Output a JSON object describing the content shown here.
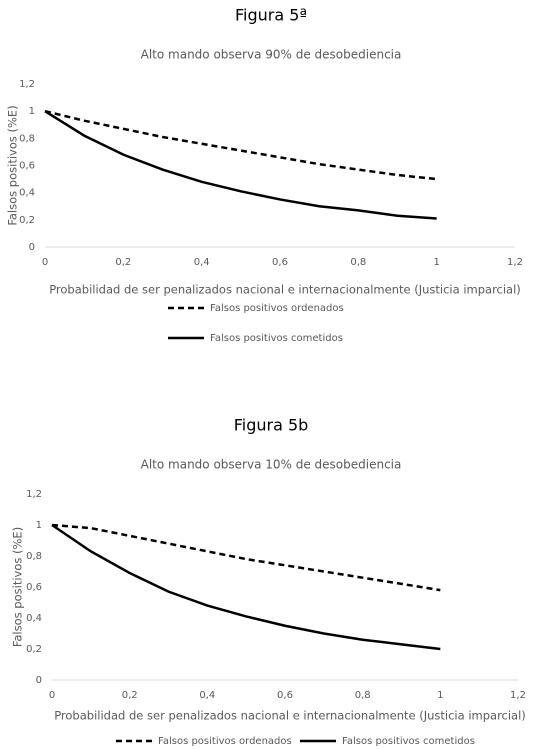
{
  "chart_data": [
    {
      "type": "line",
      "figure_label": "Figura 5ª",
      "title": "Alto mando observa 90% de desobediencia",
      "x_label": "Probabilidad de ser penalizados nacional e internacionalmente (Justicia imparcial)",
      "y_label": "Falsos positivos (%E)",
      "x": [
        0,
        0.1,
        0.2,
        0.3,
        0.4,
        0.5,
        0.6,
        0.7,
        0.8,
        0.9,
        1
      ],
      "series": [
        {
          "name": "Falsos positivos ordenados",
          "color": "#000000",
          "line_style": "dashed",
          "values": [
            1,
            0.93,
            0.87,
            0.81,
            0.76,
            0.71,
            0.66,
            0.61,
            0.57,
            0.53,
            0.5
          ]
        },
        {
          "name": "Falsos positivos cometidos",
          "color": "#000000",
          "line_style": "solid",
          "values": [
            1,
            0.82,
            0.68,
            0.57,
            0.48,
            0.41,
            0.35,
            0.3,
            0.27,
            0.23,
            0.21
          ]
        }
      ],
      "xlim": [
        0,
        1.2
      ],
      "xticks": [
        0,
        {
          "value": 0.2,
          "label": "0,2"
        },
        {
          "value": 0.4,
          "label": "0,4"
        },
        {
          "value": 0.6,
          "label": "0,6"
        },
        {
          "value": 0.8,
          "label": "0,8"
        },
        1,
        {
          "value": 1.2,
          "label": "1,2"
        }
      ],
      "ylim": [
        0,
        1.2
      ],
      "yticks": [
        0,
        {
          "value": 0.2,
          "label": "0,2"
        },
        {
          "value": 0.4,
          "label": "0,4"
        },
        {
          "value": 0.6,
          "label": "0,6"
        },
        {
          "value": 0.8,
          "label": "0,8"
        },
        1,
        {
          "value": 1.2,
          "label": "1,2"
        }
      ],
      "grid": false,
      "legend": "bottom-vertical"
    },
    {
      "type": "line",
      "figure_label": "Figura 5b",
      "title": "Alto mando observa 10% de desobediencia",
      "x_label": "Probabilidad de ser penalizados nacional e internacionalmente (Justicia imparcial)",
      "y_label": "Falsos positivos (%E)",
      "x": [
        0,
        0.1,
        0.2,
        0.3,
        0.4,
        0.5,
        0.6,
        0.7,
        0.8,
        0.9,
        1
      ],
      "series": [
        {
          "name": "Falsos positivos ordenados",
          "color": "#000000",
          "line_style": "dashed",
          "values": [
            1,
            0.98,
            0.93,
            0.88,
            0.83,
            0.78,
            0.74,
            0.7,
            0.66,
            0.62,
            0.58
          ]
        },
        {
          "name": "Falsos positivos cometidos",
          "color": "#000000",
          "line_style": "solid",
          "values": [
            1,
            0.83,
            0.69,
            0.57,
            0.48,
            0.41,
            0.35,
            0.3,
            0.26,
            0.23,
            0.2
          ]
        }
      ],
      "xlim": [
        0,
        1.2
      ],
      "xticks": [
        0,
        {
          "value": 0.2,
          "label": "0,2"
        },
        {
          "value": 0.4,
          "label": "0,4"
        },
        {
          "value": 0.6,
          "label": "0,6"
        },
        {
          "value": 0.8,
          "label": "0,8"
        },
        1,
        {
          "value": 1.2,
          "label": "1,2"
        }
      ],
      "ylim": [
        0,
        1.2
      ],
      "yticks": [
        0,
        {
          "value": 0.2,
          "label": "0,2"
        },
        {
          "value": 0.4,
          "label": "0,4"
        },
        {
          "value": 0.6,
          "label": "0,6"
        },
        {
          "value": 0.8,
          "label": "0,8"
        },
        1,
        {
          "value": 1.2,
          "label": "1,2"
        }
      ],
      "grid": false,
      "legend": "bottom-horizontal"
    }
  ]
}
